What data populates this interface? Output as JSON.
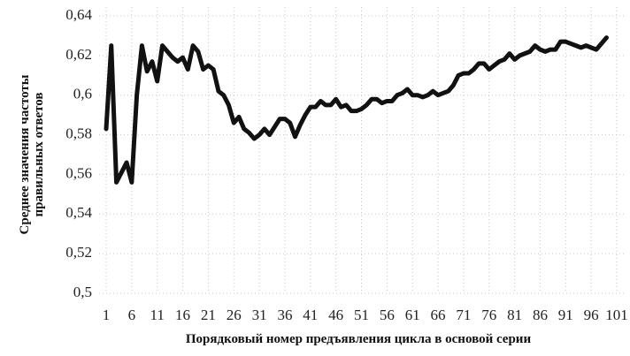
{
  "chart_data": {
    "type": "line",
    "x_label": "Порядковый номер предъявления цикла в основой серии",
    "y_label": [
      "Среднее значения частоты",
      "правильных ответов"
    ],
    "x": [
      1,
      2,
      3,
      4,
      5,
      6,
      7,
      8,
      9,
      10,
      11,
      12,
      13,
      14,
      15,
      16,
      17,
      18,
      19,
      20,
      21,
      22,
      23,
      24,
      25,
      26,
      27,
      28,
      29,
      30,
      31,
      32,
      33,
      34,
      35,
      36,
      37,
      38,
      39,
      40,
      41,
      42,
      43,
      44,
      45,
      46,
      47,
      48,
      49,
      50,
      51,
      52,
      53,
      54,
      55,
      56,
      57,
      58,
      59,
      60,
      61,
      62,
      63,
      64,
      65,
      66,
      67,
      68,
      69,
      70,
      71,
      72,
      73,
      74,
      75,
      76,
      77,
      78,
      79,
      80,
      81,
      82,
      83,
      84,
      85,
      86,
      87,
      88,
      89,
      90,
      91,
      92,
      93,
      94,
      95,
      96,
      97,
      98,
      99
    ],
    "series": [
      {
        "color": "#111111",
        "values": [
          0.583,
          0.625,
          0.556,
          0.561,
          0.566,
          0.556,
          0.6,
          0.625,
          0.612,
          0.617,
          0.607,
          0.625,
          0.622,
          0.619,
          0.617,
          0.619,
          0.613,
          0.625,
          0.622,
          0.613,
          0.615,
          0.613,
          0.602,
          0.6,
          0.595,
          0.586,
          0.589,
          0.583,
          0.581,
          0.578,
          0.58,
          0.583,
          0.58,
          0.584,
          0.588,
          0.588,
          0.586,
          0.579,
          0.585,
          0.59,
          0.594,
          0.594,
          0.597,
          0.595,
          0.595,
          0.598,
          0.594,
          0.595,
          0.592,
          0.592,
          0.593,
          0.595,
          0.598,
          0.598,
          0.596,
          0.597,
          0.597,
          0.6,
          0.601,
          0.603,
          0.6,
          0.6,
          0.599,
          0.6,
          0.602,
          0.6,
          0.601,
          0.602,
          0.605,
          0.61,
          0.611,
          0.611,
          0.613,
          0.616,
          0.616,
          0.613,
          0.615,
          0.617,
          0.618,
          0.621,
          0.618,
          0.62,
          0.621,
          0.622,
          0.625,
          0.623,
          0.622,
          0.623,
          0.623,
          0.627,
          0.627,
          0.626,
          0.625,
          0.624,
          0.625,
          0.624,
          0.623,
          0.626,
          0.629
        ]
      }
    ],
    "xlim": [
      1,
      101
    ],
    "xticks": [
      1,
      6,
      11,
      16,
      21,
      26,
      31,
      36,
      41,
      46,
      51,
      56,
      61,
      66,
      71,
      76,
      81,
      86,
      91,
      96,
      101
    ],
    "ylim": [
      0.5,
      0.64
    ],
    "yticks": [
      {
        "value": 0.5,
        "label": "0,5"
      },
      {
        "value": 0.52,
        "label": "0,52"
      },
      {
        "value": 0.54,
        "label": "0,54"
      },
      {
        "value": 0.56,
        "label": "0,56"
      },
      {
        "value": 0.58,
        "label": "0,58"
      },
      {
        "value": 0.6,
        "label": "0,6"
      },
      {
        "value": 0.62,
        "label": "0,62"
      },
      {
        "value": 0.64,
        "label": "0,64"
      }
    ],
    "grid": true
  }
}
